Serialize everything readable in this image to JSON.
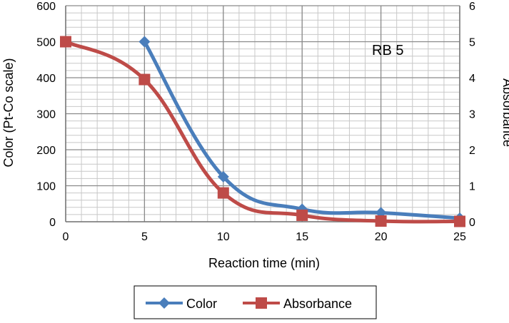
{
  "chart_data": {
    "type": "line",
    "annotation": "RB 5",
    "xlabel": "Reaction time (min)",
    "ylabel": "Color (Pt-Co scale)",
    "y2label": "Absorbance",
    "x_ticks": [
      "0",
      "5",
      "10",
      "15",
      "20",
      "25"
    ],
    "y_ticks": [
      "0",
      "100",
      "200",
      "300",
      "400",
      "500",
      "600"
    ],
    "y2_ticks": [
      "0",
      "1",
      "2",
      "3",
      "4",
      "5",
      "6"
    ],
    "xlim": [
      0,
      25
    ],
    "ylim": [
      0,
      600
    ],
    "y2lim": [
      0,
      6
    ],
    "grid": true,
    "legend_position": "bottom",
    "series": [
      {
        "name": "Color",
        "axis": "left",
        "marker": "diamond",
        "color": "#4a7ebb",
        "x": [
          5,
          10,
          15,
          20,
          25
        ],
        "values": [
          500,
          125,
          35,
          25,
          10
        ]
      },
      {
        "name": "Absorbance",
        "axis": "right",
        "marker": "square",
        "color": "#be4b48",
        "x": [
          0,
          5,
          10,
          15,
          20,
          25
        ],
        "values": [
          5.0,
          3.95,
          0.8,
          0.18,
          0.02,
          0.01
        ]
      }
    ]
  }
}
